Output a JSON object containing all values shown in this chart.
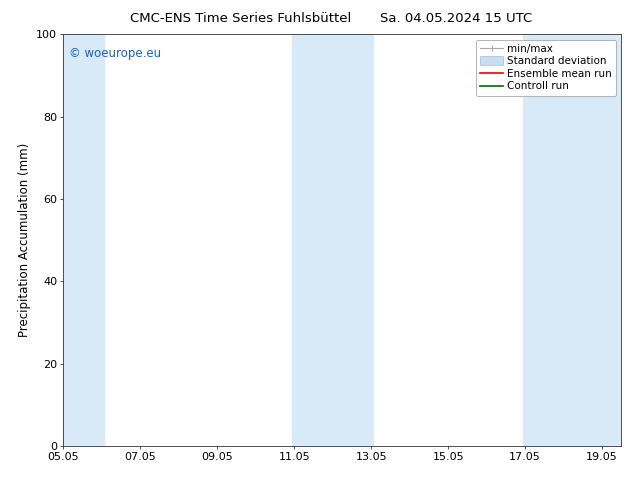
{
  "title_left": "CMC-ENS Time Series Fuhlsbüttel",
  "title_right": "Sa. 04.05.2024 15 UTC",
  "ylabel": "Precipitation Accumulation (mm)",
  "ylim": [
    0,
    100
  ],
  "yticks": [
    0,
    20,
    40,
    60,
    80,
    100
  ],
  "xtick_labels": [
    "05.05",
    "07.05",
    "09.05",
    "11.05",
    "13.05",
    "15.05",
    "17.05",
    "19.05"
  ],
  "xtick_positions": [
    0,
    2,
    4,
    6,
    8,
    10,
    12,
    14
  ],
  "xlim": [
    0,
    14.5
  ],
  "watermark": "© woeurope.eu",
  "watermark_color": "#1565C0",
  "bg_color": "#ffffff",
  "plot_bg_color": "#ffffff",
  "shaded_bands": [
    {
      "x_start": 0.0,
      "x_end": 1.05,
      "color": "#d8eaf7",
      "alpha": 1.0
    },
    {
      "x_start": 5.95,
      "x_end": 8.05,
      "color": "#d8eaf7",
      "alpha": 1.0
    },
    {
      "x_start": 11.95,
      "x_end": 14.5,
      "color": "#d8eaf7",
      "alpha": 1.0
    }
  ],
  "legend_minmax_color": "#aaaaaa",
  "legend_stddev_facecolor": "#c8ddf0",
  "legend_stddev_edgecolor": "#aabbcc",
  "legend_ens_color": "#ee0000",
  "legend_ctrl_color": "#006600",
  "title_fontsize": 9.5,
  "axis_label_fontsize": 8.5,
  "tick_fontsize": 8,
  "watermark_fontsize": 8.5,
  "legend_fontsize": 7.5
}
